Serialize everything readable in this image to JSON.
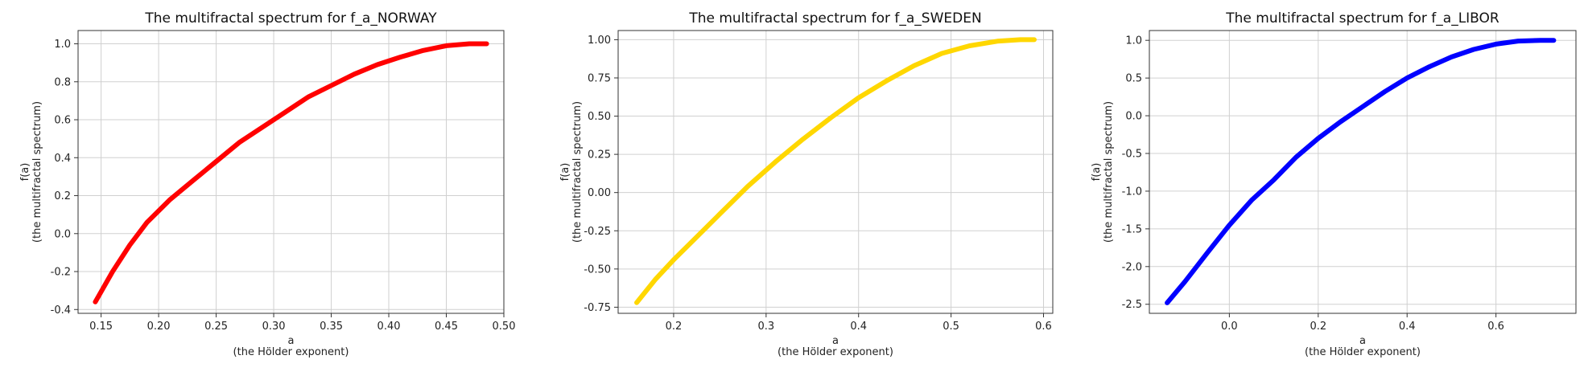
{
  "chart_data": [
    {
      "type": "line",
      "title": "The multifractal spectrum for f_a_NORWAY",
      "xlabel_line1": "a",
      "xlabel_line2": "(the Hölder exponent)",
      "ylabel_line1": "f(a)",
      "ylabel_line2": "(the multifractal spectrum)",
      "xlim": [
        0.13,
        0.5
      ],
      "ylim": [
        -0.42,
        1.07
      ],
      "xticks": [
        0.15,
        0.2,
        0.25,
        0.3,
        0.35,
        0.4,
        0.45,
        0.5
      ],
      "xtick_labels": [
        "0.15",
        "0.20",
        "0.25",
        "0.30",
        "0.35",
        "0.40",
        "0.45",
        "0.50"
      ],
      "yticks": [
        -0.4,
        -0.2,
        0.0,
        0.2,
        0.4,
        0.6,
        0.8,
        1.0
      ],
      "ytick_labels": [
        "-0.4",
        "-0.2",
        "0.0",
        "0.2",
        "0.4",
        "0.6",
        "0.8",
        "1.0"
      ],
      "grid": true,
      "color": "#ff0000",
      "x": [
        0.145,
        0.16,
        0.175,
        0.19,
        0.21,
        0.23,
        0.25,
        0.27,
        0.29,
        0.31,
        0.33,
        0.35,
        0.37,
        0.39,
        0.41,
        0.43,
        0.45,
        0.47,
        0.485
      ],
      "y": [
        -0.36,
        -0.2,
        -0.06,
        0.06,
        0.18,
        0.28,
        0.38,
        0.48,
        0.56,
        0.64,
        0.72,
        0.78,
        0.84,
        0.89,
        0.93,
        0.965,
        0.99,
        1.0,
        1.0
      ]
    },
    {
      "type": "line",
      "title": "The multifractal spectrum for f_a_SWEDEN",
      "xlabel_line1": "a",
      "xlabel_line2": "(the Hölder exponent)",
      "ylabel_line1": "f(a)",
      "ylabel_line2": "(the multifractal spectrum)",
      "xlim": [
        0.14,
        0.61
      ],
      "ylim": [
        -0.79,
        1.06
      ],
      "xticks": [
        0.2,
        0.3,
        0.4,
        0.5,
        0.6
      ],
      "xtick_labels": [
        "0.2",
        "0.3",
        "0.4",
        "0.5",
        "0.6"
      ],
      "yticks": [
        -0.75,
        -0.5,
        -0.25,
        0.0,
        0.25,
        0.5,
        0.75,
        1.0
      ],
      "ytick_labels": [
        "-0.75",
        "-0.50",
        "-0.25",
        "0.00",
        "0.25",
        "0.50",
        "0.75",
        "1.00"
      ],
      "grid": true,
      "color": "#ffd700",
      "x": [
        0.16,
        0.18,
        0.2,
        0.22,
        0.25,
        0.28,
        0.31,
        0.34,
        0.37,
        0.4,
        0.43,
        0.46,
        0.49,
        0.52,
        0.55,
        0.575,
        0.59
      ],
      "y": [
        -0.72,
        -0.57,
        -0.44,
        -0.32,
        -0.14,
        0.04,
        0.2,
        0.35,
        0.49,
        0.62,
        0.73,
        0.83,
        0.91,
        0.96,
        0.99,
        1.0,
        1.0
      ]
    },
    {
      "type": "line",
      "title": "The multifractal spectrum for f_a_LIBOR",
      "xlabel_line1": "a",
      "xlabel_line2": "(the Hölder exponent)",
      "ylabel_line1": "f(a)",
      "ylabel_line2": "(the multifractal spectrum)",
      "xlim": [
        -0.18,
        0.78
      ],
      "ylim": [
        -2.62,
        1.13
      ],
      "xticks": [
        0.0,
        0.2,
        0.4,
        0.6
      ],
      "xtick_labels": [
        "0.0",
        "0.2",
        "0.4",
        "0.6"
      ],
      "yticks": [
        -2.5,
        -2.0,
        -1.5,
        -1.0,
        -0.5,
        0.0,
        0.5,
        1.0
      ],
      "ytick_labels": [
        "-2.5",
        "-2.0",
        "-1.5",
        "-1.0",
        "-0.5",
        "0.0",
        "0.5",
        "1.0"
      ],
      "grid": true,
      "color": "#0000ff",
      "x": [
        -0.14,
        -0.1,
        -0.05,
        0.0,
        0.05,
        0.1,
        0.15,
        0.2,
        0.25,
        0.3,
        0.35,
        0.4,
        0.45,
        0.5,
        0.55,
        0.6,
        0.65,
        0.7,
        0.73
      ],
      "y": [
        -2.48,
        -2.2,
        -1.82,
        -1.45,
        -1.12,
        -0.85,
        -0.55,
        -0.3,
        -0.08,
        0.12,
        0.32,
        0.5,
        0.65,
        0.78,
        0.88,
        0.95,
        0.99,
        1.0,
        1.0
      ]
    }
  ]
}
